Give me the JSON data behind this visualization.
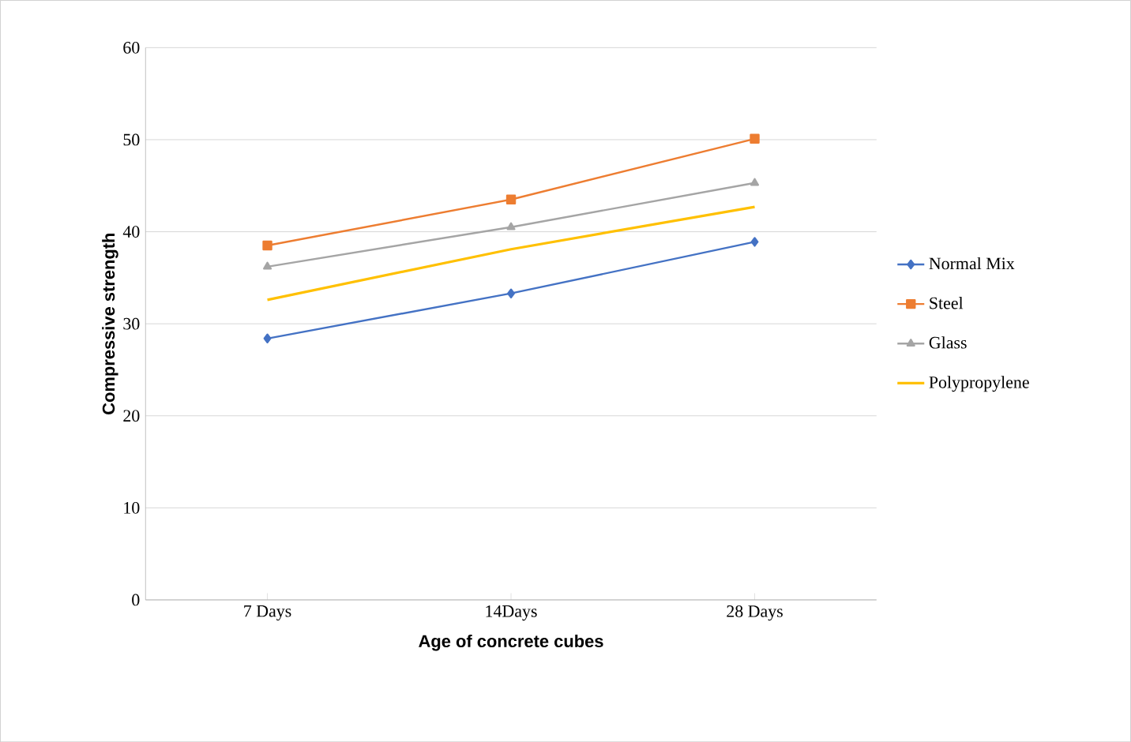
{
  "chart_data": {
    "type": "line",
    "xlabel": "Age of concrete cubes",
    "ylabel": "Compressive strength",
    "categories": [
      "7 Days",
      "14Days",
      "28 Days"
    ],
    "series": [
      {
        "name": "Normal Mix",
        "color": "#4472c4",
        "values": [
          28.4,
          33.3,
          38.9
        ],
        "marker": "diamond"
      },
      {
        "name": "Steel",
        "color": "#ed7d31",
        "values": [
          38.5,
          43.5,
          50.1
        ],
        "marker": "square"
      },
      {
        "name": "Glass",
        "color": "#a5a5a5",
        "values": [
          36.2,
          40.5,
          45.3
        ],
        "marker": "triangle"
      },
      {
        "name": "Polypropylene",
        "color": "#ffc000",
        "values": [
          32.6,
          38.1,
          42.7
        ],
        "marker": "none"
      }
    ],
    "ylim": [
      0,
      60
    ],
    "yticks": [
      0,
      10,
      20,
      30,
      40,
      50,
      60
    ],
    "grid": "y",
    "legend": "right"
  }
}
